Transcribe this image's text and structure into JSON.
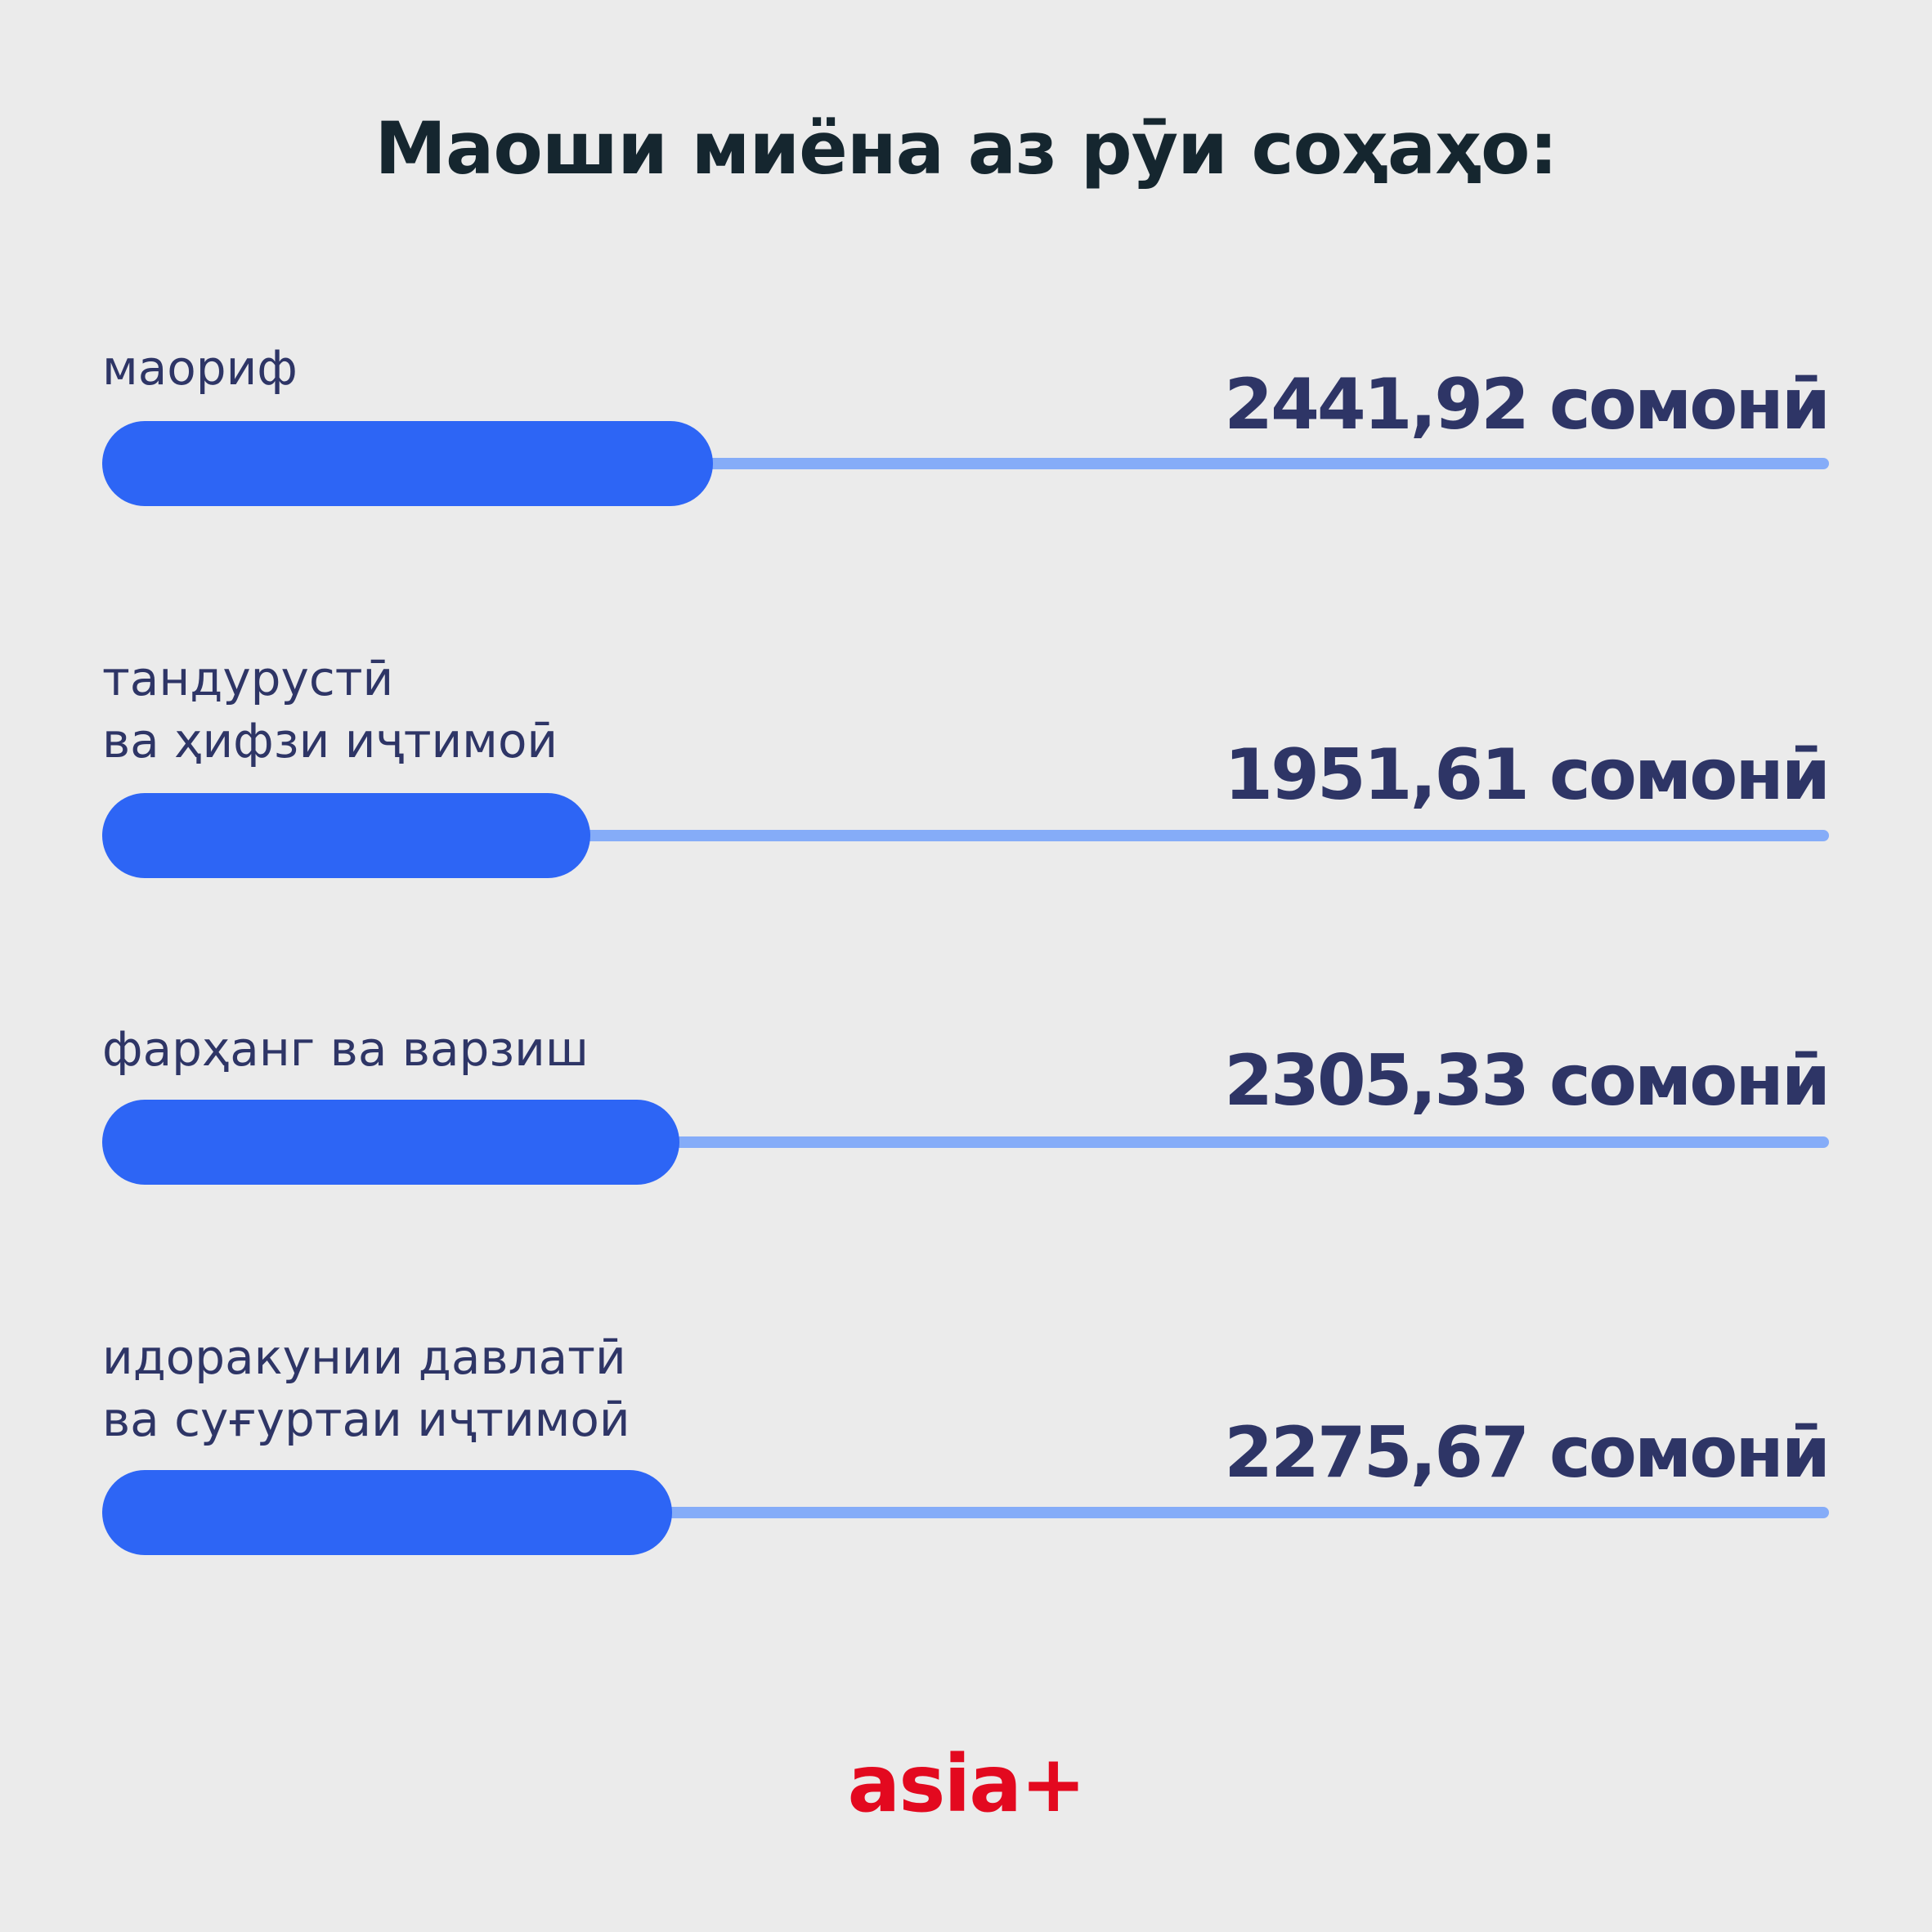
{
  "chart_data": {
    "type": "bar",
    "title": "Маоши миёна аз рӯи соҳаҳо:",
    "categories": [
      "маориф",
      "тандурустӣ\nва ҳифзи иҷтимоӣ",
      "фарҳанг ва варзиш",
      "идоракунии давлатӣ\nва суғуртаи иҷтимоӣ"
    ],
    "series": [
      {
        "values": [
          2441.92,
          1951.61,
          2305.33,
          2275.67
        ]
      }
    ],
    "value_labels": [
      "2441,92 сомонӣ",
      "1951,61 сомонӣ",
      "2305,33 сомонӣ",
      "2275,67 сомонӣ"
    ],
    "xlim": [
      0,
      6900
    ],
    "colors": {
      "bar": "#2d65f5",
      "track": "#85acf8",
      "text": "#2e3566"
    }
  },
  "brand": {
    "logo_text": "asia+",
    "color": "#e3091f"
  }
}
